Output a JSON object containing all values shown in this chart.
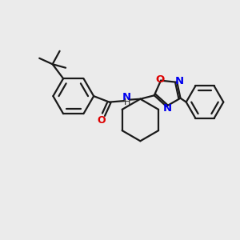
{
  "bg_color": "#ebebeb",
  "line_color": "#1a1a1a",
  "bond_width": 1.6,
  "nitrogen_color": "#0000ee",
  "oxygen_color": "#dd0000",
  "figsize": [
    3.0,
    3.0
  ],
  "dpi": 100,
  "xlim": [
    0,
    10
  ],
  "ylim": [
    0,
    10
  ]
}
